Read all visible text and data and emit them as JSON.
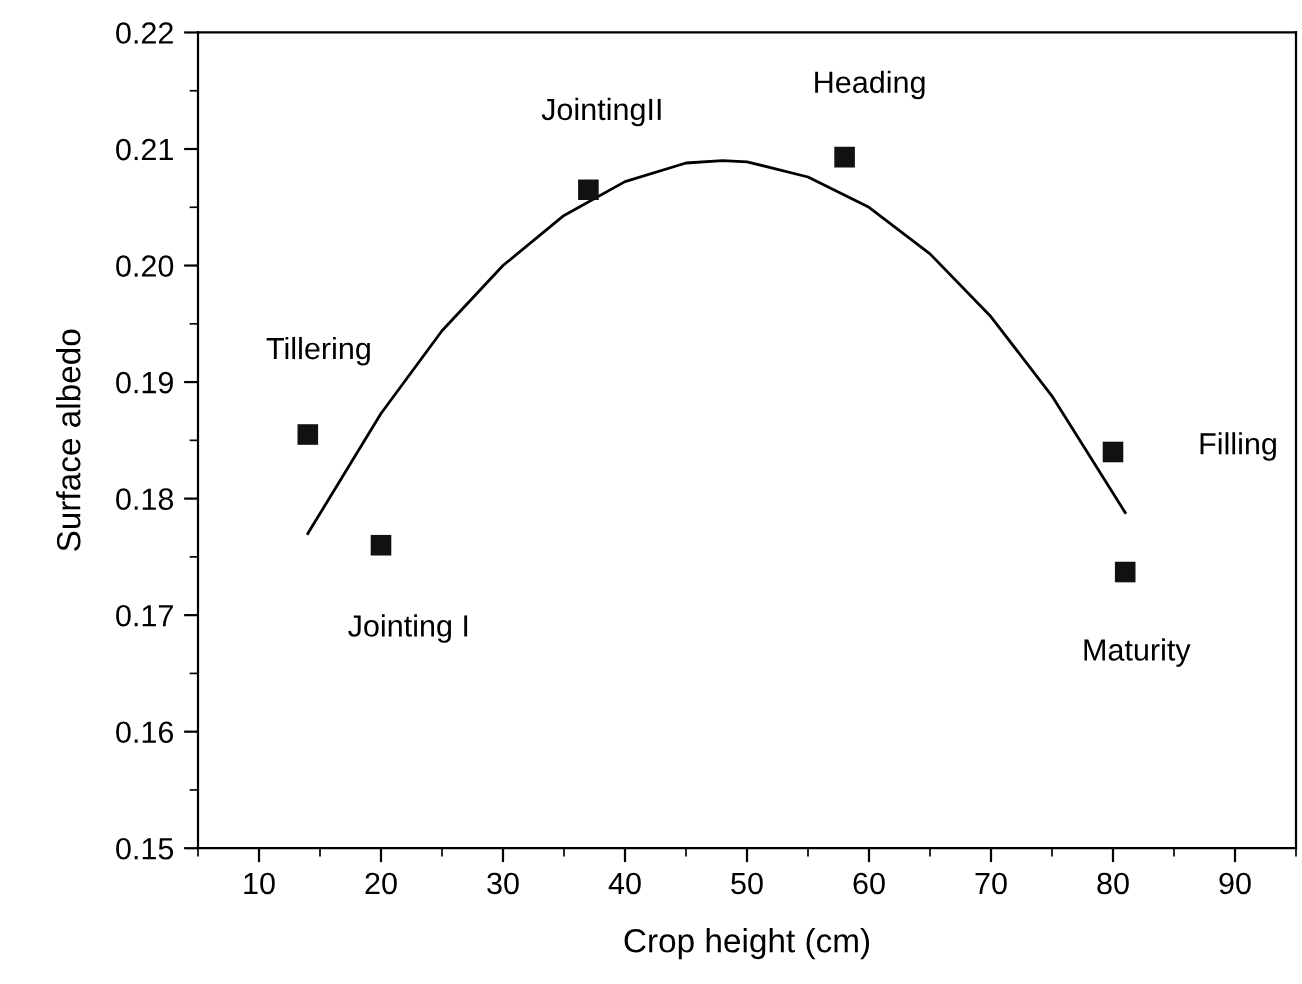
{
  "chart_data": {
    "type": "scatter",
    "xlabel": "Crop height (cm)",
    "ylabel": "Surface albedo",
    "xlim": [
      5,
      95
    ],
    "xticks": [
      10,
      20,
      30,
      40,
      50,
      60,
      70,
      80,
      90
    ],
    "ylim": [
      0.15,
      0.22
    ],
    "yticks": [
      0.15,
      0.16,
      0.17,
      0.18,
      0.19,
      {
        "value": 0.2,
        "label": "0.20"
      },
      0.21,
      0.22
    ],
    "grid": false,
    "legend": false,
    "series": [
      {
        "marker": "square",
        "color": "#111111",
        "x": [
          14,
          20,
          37,
          58,
          80,
          81
        ],
        "values": [
          0.1855,
          0.176,
          0.2065,
          0.2093,
          0.184,
          0.1737
        ]
      },
      {
        "type": "line",
        "marker": "none",
        "line_style": "solid",
        "color": "#000000",
        "x": [
          14,
          20,
          25,
          30,
          35,
          40,
          45,
          48,
          50,
          55,
          60,
          65,
          70,
          75,
          81
        ],
        "values": [
          0.177,
          0.1873,
          0.1944,
          0.2,
          0.2043,
          0.2072,
          0.2088,
          0.209,
          0.2089,
          0.2076,
          0.205,
          0.201,
          0.1956,
          0.1888,
          0.1788
        ]
      }
    ],
    "annotations": [
      {
        "text": "Tillering",
        "x": 14,
        "y": 0.1855
      },
      {
        "text": "Jointing I",
        "x": 20,
        "y": 0.176
      },
      {
        "text": "JointingII",
        "x": 37,
        "y": 0.2065
      },
      {
        "text": "Heading",
        "x": 58,
        "y": 0.2093
      },
      {
        "text": "Filling",
        "x": 80,
        "y": 0.184
      },
      {
        "text": "Maturity",
        "x": 81,
        "y": 0.1737
      }
    ]
  }
}
